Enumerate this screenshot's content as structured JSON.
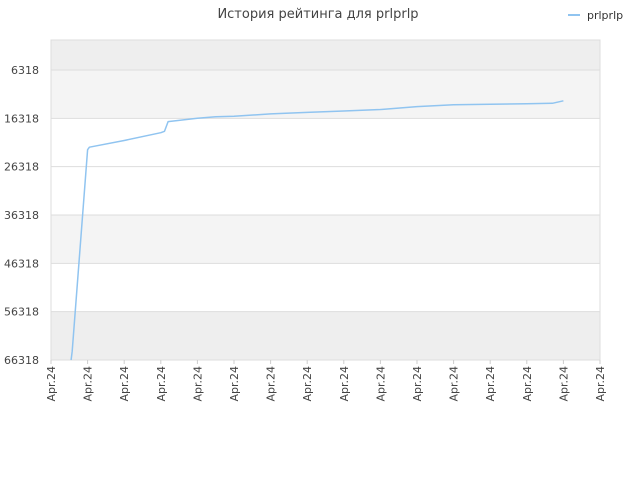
{
  "chart_data": {
    "type": "line",
    "title": "История рейтинга для prlprlp",
    "xlabel": "",
    "ylabel": "",
    "y_reversed": true,
    "ylim": [
      66318,
      0
    ],
    "y_ticks": [
      6318,
      16318,
      26318,
      36318,
      46318,
      56318,
      66318
    ],
    "y_tick_labels": [
      "6318",
      "16318",
      "26318",
      "36318",
      "46318",
      "56318",
      "66318"
    ],
    "x_tick_labels": [
      "Apr.24",
      "Apr.24",
      "Apr.24",
      "Apr.24",
      "Apr.24",
      "Apr.24",
      "Apr.24",
      "Apr.24",
      "Apr.24",
      "Apr.24",
      "Apr.24",
      "Apr.24",
      "Apr.24",
      "Apr.24",
      "Apr.24",
      "Apr.24"
    ],
    "grid": true,
    "legend_position": "top-right",
    "series": [
      {
        "name": "prlprlp",
        "color": "#90c4f0",
        "points": [
          [
            0.55,
            66318
          ],
          [
            0.58,
            64500
          ],
          [
            1.0,
            22800
          ],
          [
            1.05,
            22300
          ],
          [
            2.0,
            20900
          ],
          [
            3.0,
            19300
          ],
          [
            3.1,
            19000
          ],
          [
            3.2,
            17000
          ],
          [
            4.0,
            16300
          ],
          [
            4.5,
            16000
          ],
          [
            5.0,
            15900
          ],
          [
            6.0,
            15400
          ],
          [
            7.0,
            15100
          ],
          [
            8.0,
            14800
          ],
          [
            9.0,
            14500
          ],
          [
            10.0,
            13900
          ],
          [
            11.0,
            13500
          ],
          [
            12.0,
            13400
          ],
          [
            13.0,
            13300
          ],
          [
            13.7,
            13200
          ],
          [
            14.0,
            12700
          ]
        ]
      }
    ]
  }
}
